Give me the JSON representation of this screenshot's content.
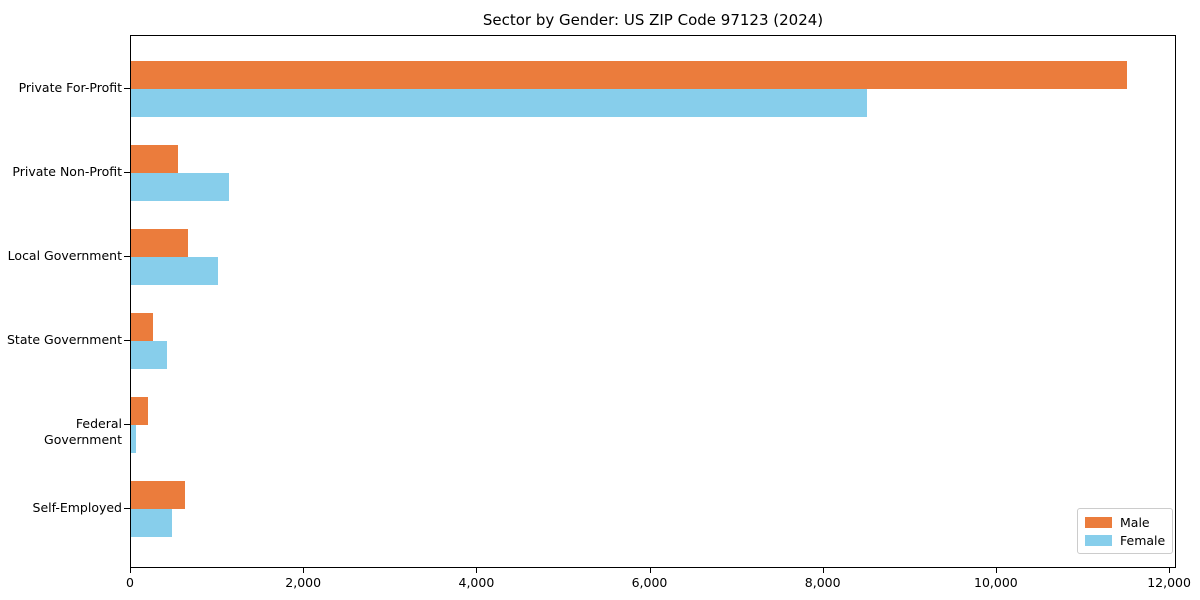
{
  "title": "Sector by Gender: US ZIP Code 97123 (2024)",
  "colors": {
    "male": "#eb7c3c",
    "female": "#87ceeb",
    "spine": "#000000",
    "legend_border": "#cccccc",
    "background": "#ffffff"
  },
  "chart_data": {
    "type": "bar",
    "orientation": "horizontal",
    "title": "Sector by Gender: US ZIP Code 97123 (2024)",
    "xlabel": "",
    "ylabel": "",
    "categories": [
      "Private For-Profit",
      "Private Non-Profit",
      "Local Government",
      "State Government",
      "Federal Government",
      "Self-Employed"
    ],
    "series": [
      {
        "name": "Male",
        "color": "#eb7c3c",
        "values": [
          11500,
          540,
          660,
          250,
          190,
          620
        ]
      },
      {
        "name": "Female",
        "color": "#87ceeb",
        "values": [
          8500,
          1130,
          1000,
          410,
          60,
          470
        ]
      }
    ],
    "xlim": [
      0,
      12080
    ],
    "xticks": [
      {
        "value": 0,
        "label": "0"
      },
      {
        "value": 2000,
        "label": "2,000"
      },
      {
        "value": 4000,
        "label": "4,000"
      },
      {
        "value": 6000,
        "label": "6,000"
      },
      {
        "value": 8000,
        "label": "8,000"
      },
      {
        "value": 10000,
        "label": "10,000"
      },
      {
        "value": 12000,
        "label": "12,000"
      }
    ],
    "grid": false,
    "legend_position": "lower right"
  }
}
